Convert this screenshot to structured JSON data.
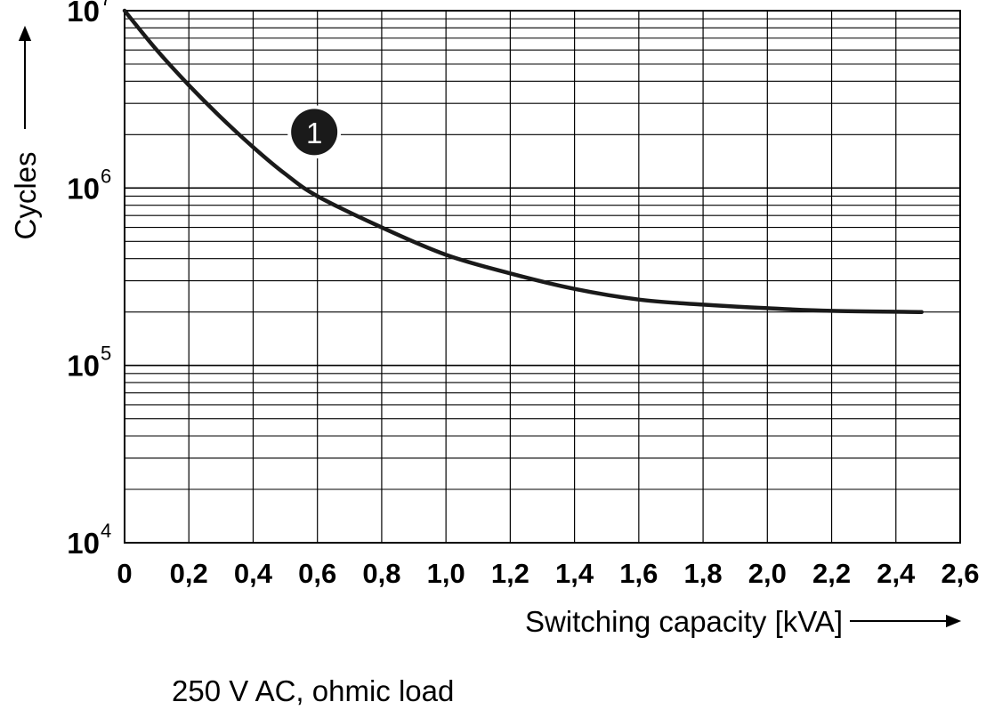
{
  "chart_data": {
    "type": "line",
    "title": "",
    "xlabel": "Switching capacity [kVA]",
    "ylabel": "Cycles",
    "caption": "250 V AC, ohmic load",
    "x_scale": "linear",
    "y_scale": "log",
    "xlim": [
      0,
      2.6
    ],
    "ylim": [
      10000,
      10000000
    ],
    "x_ticks": [
      "0",
      "0,2",
      "0,4",
      "0,6",
      "0,8",
      "1,0",
      "1,2",
      "1,4",
      "1,6",
      "1,8",
      "2,0",
      "2,2",
      "2,4",
      "2,6"
    ],
    "x_tick_values": [
      0,
      0.2,
      0.4,
      0.6,
      0.8,
      1.0,
      1.2,
      1.4,
      1.6,
      1.8,
      2.0,
      2.2,
      2.4,
      2.6
    ],
    "y_ticks": [
      {
        "base": "10",
        "exp": "4",
        "value": 10000
      },
      {
        "base": "10",
        "exp": "5",
        "value": 100000
      },
      {
        "base": "10",
        "exp": "6",
        "value": 1000000
      },
      {
        "base": "10",
        "exp": "7",
        "value": 10000000
      }
    ],
    "grid": true,
    "series": [
      {
        "marker_label": "1",
        "x": [
          0,
          0.1,
          0.2,
          0.3,
          0.4,
          0.5,
          0.6,
          0.8,
          1.0,
          1.2,
          1.4,
          1.6,
          1.8,
          2.0,
          2.2,
          2.48
        ],
        "y": [
          10000000,
          6000000,
          3800000,
          2500000,
          1700000,
          1200000,
          900000,
          600000,
          420000,
          330000,
          270000,
          235000,
          220000,
          210000,
          203000,
          200000
        ]
      }
    ]
  }
}
